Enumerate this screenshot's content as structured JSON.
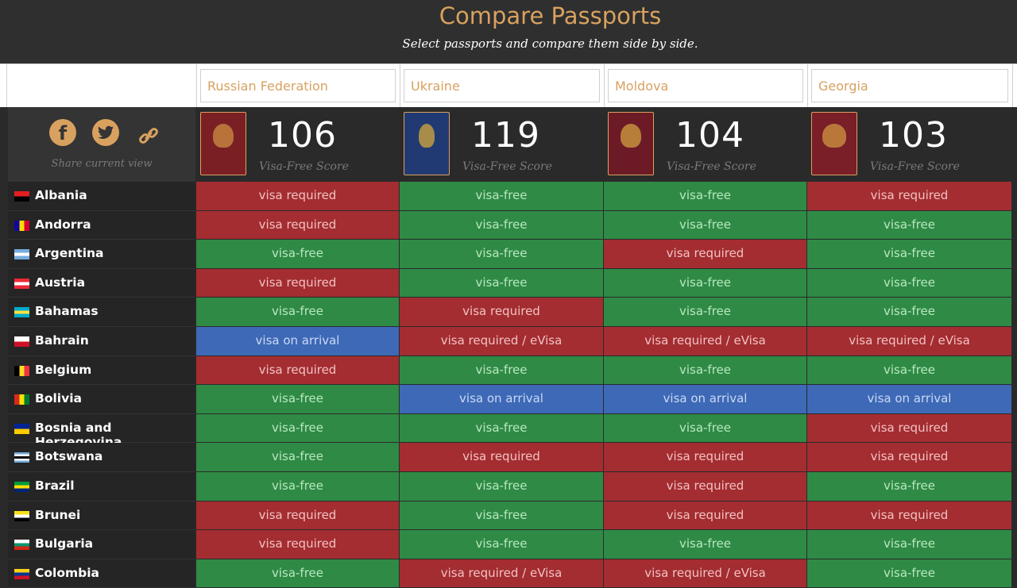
{
  "header": {
    "title": "Compare Passports",
    "subtitle": "Select passports and compare them side by side."
  },
  "share": {
    "label": "Share current view",
    "icons": [
      "facebook-icon",
      "twitter-icon",
      "link-icon"
    ]
  },
  "colors": {
    "accent": "#d9a15f",
    "visa_free": "#2f8a45",
    "visa_required": "#a32d31",
    "visa_on_arrival": "#3e69b6"
  },
  "passports": [
    {
      "name": "Russian Federation",
      "score": "106",
      "score_label": "Visa-Free Score",
      "cover_color": "#7a1f24"
    },
    {
      "name": "Ukraine",
      "score": "119",
      "score_label": "Visa-Free Score",
      "cover_color": "#223a73"
    },
    {
      "name": "Moldova",
      "score": "104",
      "score_label": "Visa-Free Score",
      "cover_color": "#6d1a27"
    },
    {
      "name": "Georgia",
      "score": "103",
      "score_label": "Visa-Free Score",
      "cover_color": "#7a1e28"
    }
  ],
  "rows": [
    {
      "country": "Albania",
      "flag": [
        "#e41e20",
        "#000000"
      ],
      "values": [
        "visa required",
        "visa-free",
        "visa-free",
        "visa required"
      ]
    },
    {
      "country": "Andorra",
      "flag": [
        "#10069f",
        "#fedf00",
        "#d50032"
      ],
      "values": [
        "visa required",
        "visa-free",
        "visa-free",
        "visa-free"
      ]
    },
    {
      "country": "Argentina",
      "flag": [
        "#74acdf",
        "#ffffff",
        "#74acdf"
      ],
      "values": [
        "visa-free",
        "visa-free",
        "visa required",
        "visa-free"
      ]
    },
    {
      "country": "Austria",
      "flag": [
        "#ed2939",
        "#ffffff",
        "#ed2939"
      ],
      "values": [
        "visa required",
        "visa-free",
        "visa-free",
        "visa-free"
      ]
    },
    {
      "country": "Bahamas",
      "flag": [
        "#00abc9",
        "#fae042",
        "#00abc9"
      ],
      "values": [
        "visa-free",
        "visa required",
        "visa-free",
        "visa-free"
      ]
    },
    {
      "country": "Bahrain",
      "flag": [
        "#ffffff",
        "#ce1126"
      ],
      "values": [
        "visa on arrival",
        "visa required / eVisa",
        "visa required / eVisa",
        "visa required / eVisa"
      ]
    },
    {
      "country": "Belgium",
      "flag": [
        "#000000",
        "#fdda24",
        "#ef3340"
      ],
      "values": [
        "visa required",
        "visa-free",
        "visa-free",
        "visa-free"
      ]
    },
    {
      "country": "Bolivia",
      "flag": [
        "#d52b1e",
        "#f9e300",
        "#007934"
      ],
      "values": [
        "visa-free",
        "visa on arrival",
        "visa on arrival",
        "visa on arrival"
      ]
    },
    {
      "country": "Bosnia and Herzegovina",
      "flag": [
        "#002395",
        "#fecb00"
      ],
      "values": [
        "visa-free",
        "visa-free",
        "visa-free",
        "visa required"
      ]
    },
    {
      "country": "Botswana",
      "flag": [
        "#75aadb",
        "#ffffff",
        "#000000",
        "#ffffff",
        "#75aadb"
      ],
      "values": [
        "visa-free",
        "visa required",
        "visa required",
        "visa required"
      ]
    },
    {
      "country": "Brazil",
      "flag": [
        "#009c3b",
        "#ffdf00",
        "#002776"
      ],
      "values": [
        "visa-free",
        "visa-free",
        "visa required",
        "visa-free"
      ]
    },
    {
      "country": "Brunei",
      "flag": [
        "#f7e017",
        "#ffffff",
        "#000000"
      ],
      "values": [
        "visa required",
        "visa-free",
        "visa required",
        "visa required"
      ]
    },
    {
      "country": "Bulgaria",
      "flag": [
        "#ffffff",
        "#00966e",
        "#d62612"
      ],
      "values": [
        "visa required",
        "visa-free",
        "visa-free",
        "visa-free"
      ]
    },
    {
      "country": "Colombia",
      "flag": [
        "#fcd116",
        "#003893",
        "#ce1126"
      ],
      "values": [
        "visa-free",
        "visa required / eVisa",
        "visa required / eVisa",
        "visa-free"
      ]
    }
  ]
}
